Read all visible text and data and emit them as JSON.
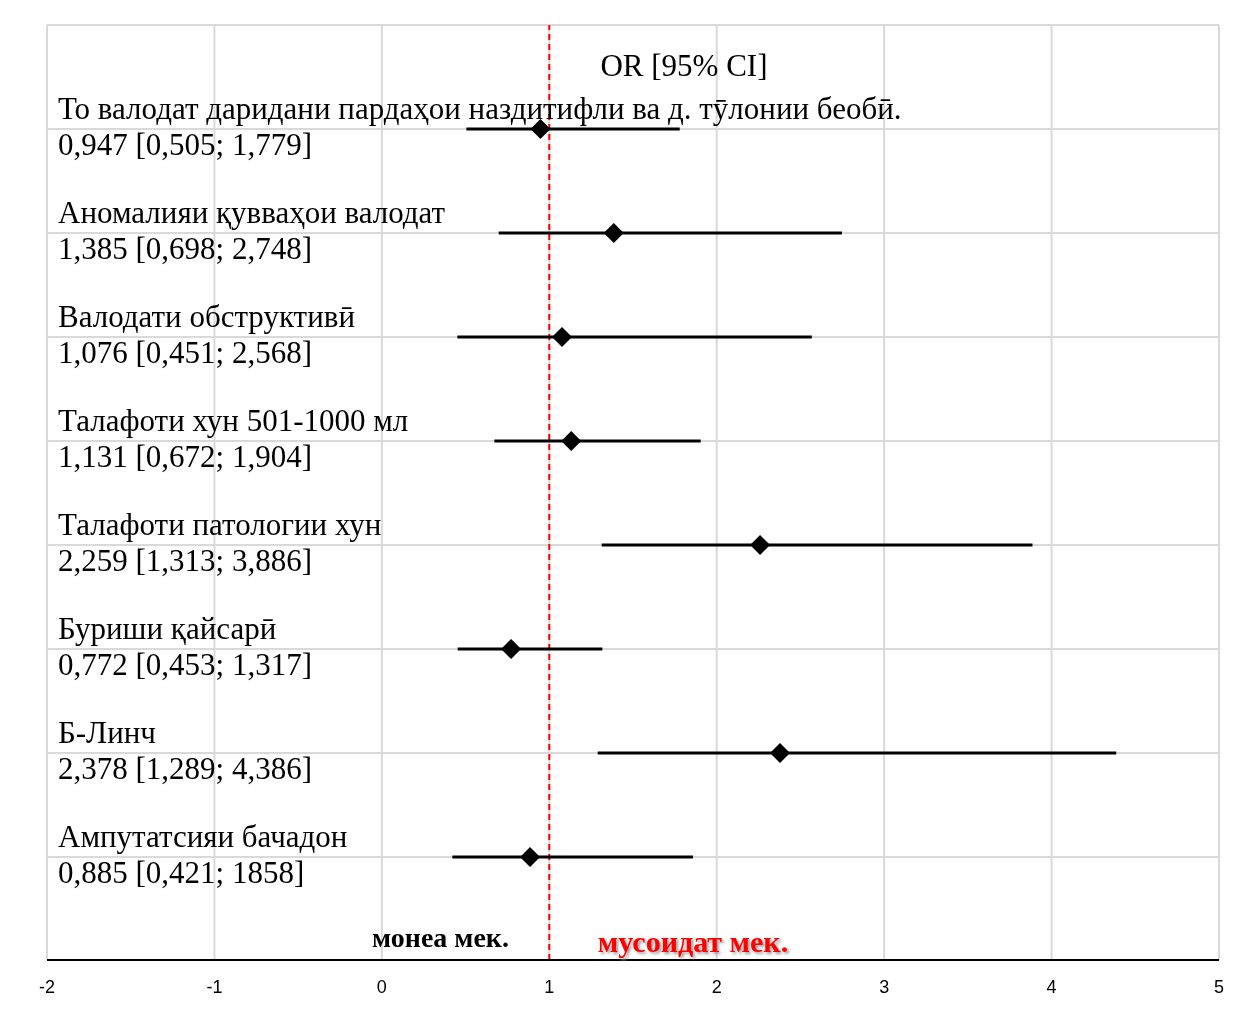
{
  "chart_data": {
    "type": "scatter",
    "orientation": "horizontal",
    "categories": [
      "То валодат даридани пардаҳои наздитифли ва д. тӯлонии беобӣ.",
      "Аномалияи қувваҳои валодат",
      "Валодати обструктивӣ",
      "Талафоти хун 501-1000 мл",
      "Талафоти патологии хун",
      "Буриши қайсарӣ",
      "Б-Линч",
      "Ампутатсияи бачадон"
    ],
    "values": [
      0.947,
      1.385,
      1.076,
      1.131,
      2.259,
      0.772,
      2.378,
      0.885
    ],
    "errors": [
      [
        0.505,
        1.779
      ],
      [
        0.698,
        2.748
      ],
      [
        0.451,
        2.568
      ],
      [
        0.672,
        1.904
      ],
      [
        1.313,
        3.886
      ],
      [
        0.453,
        1.317
      ],
      [
        1.289,
        4.386
      ],
      [
        0.421,
        1.858
      ]
    ],
    "color": "#000000",
    "marker": "diamond",
    "xlim": [
      -2,
      5
    ],
    "xticks": [
      -2,
      -1,
      0,
      1,
      2,
      3,
      4,
      5
    ],
    "grid": true,
    "ref_lines": [
      {
        "axis": "x",
        "value": 1,
        "color": "#ff0000",
        "line_style": "dashed"
      }
    ],
    "annotations": [
      "OR [95% CI]",
      "монеа мек.",
      "мусоидат мек.",
      "0,947 [0,505; 1,779]",
      "1,385 [0,698; 2,748]",
      "1,076 [0,451; 2,568]",
      "1,131 [0,672; 1,904]",
      "2,259 [1,313; 3,886]",
      "0,772 [0,453; 1,317]",
      "2,378 [1,289; 4,386]",
      "0,885 [0,421; 1858]"
    ]
  }
}
